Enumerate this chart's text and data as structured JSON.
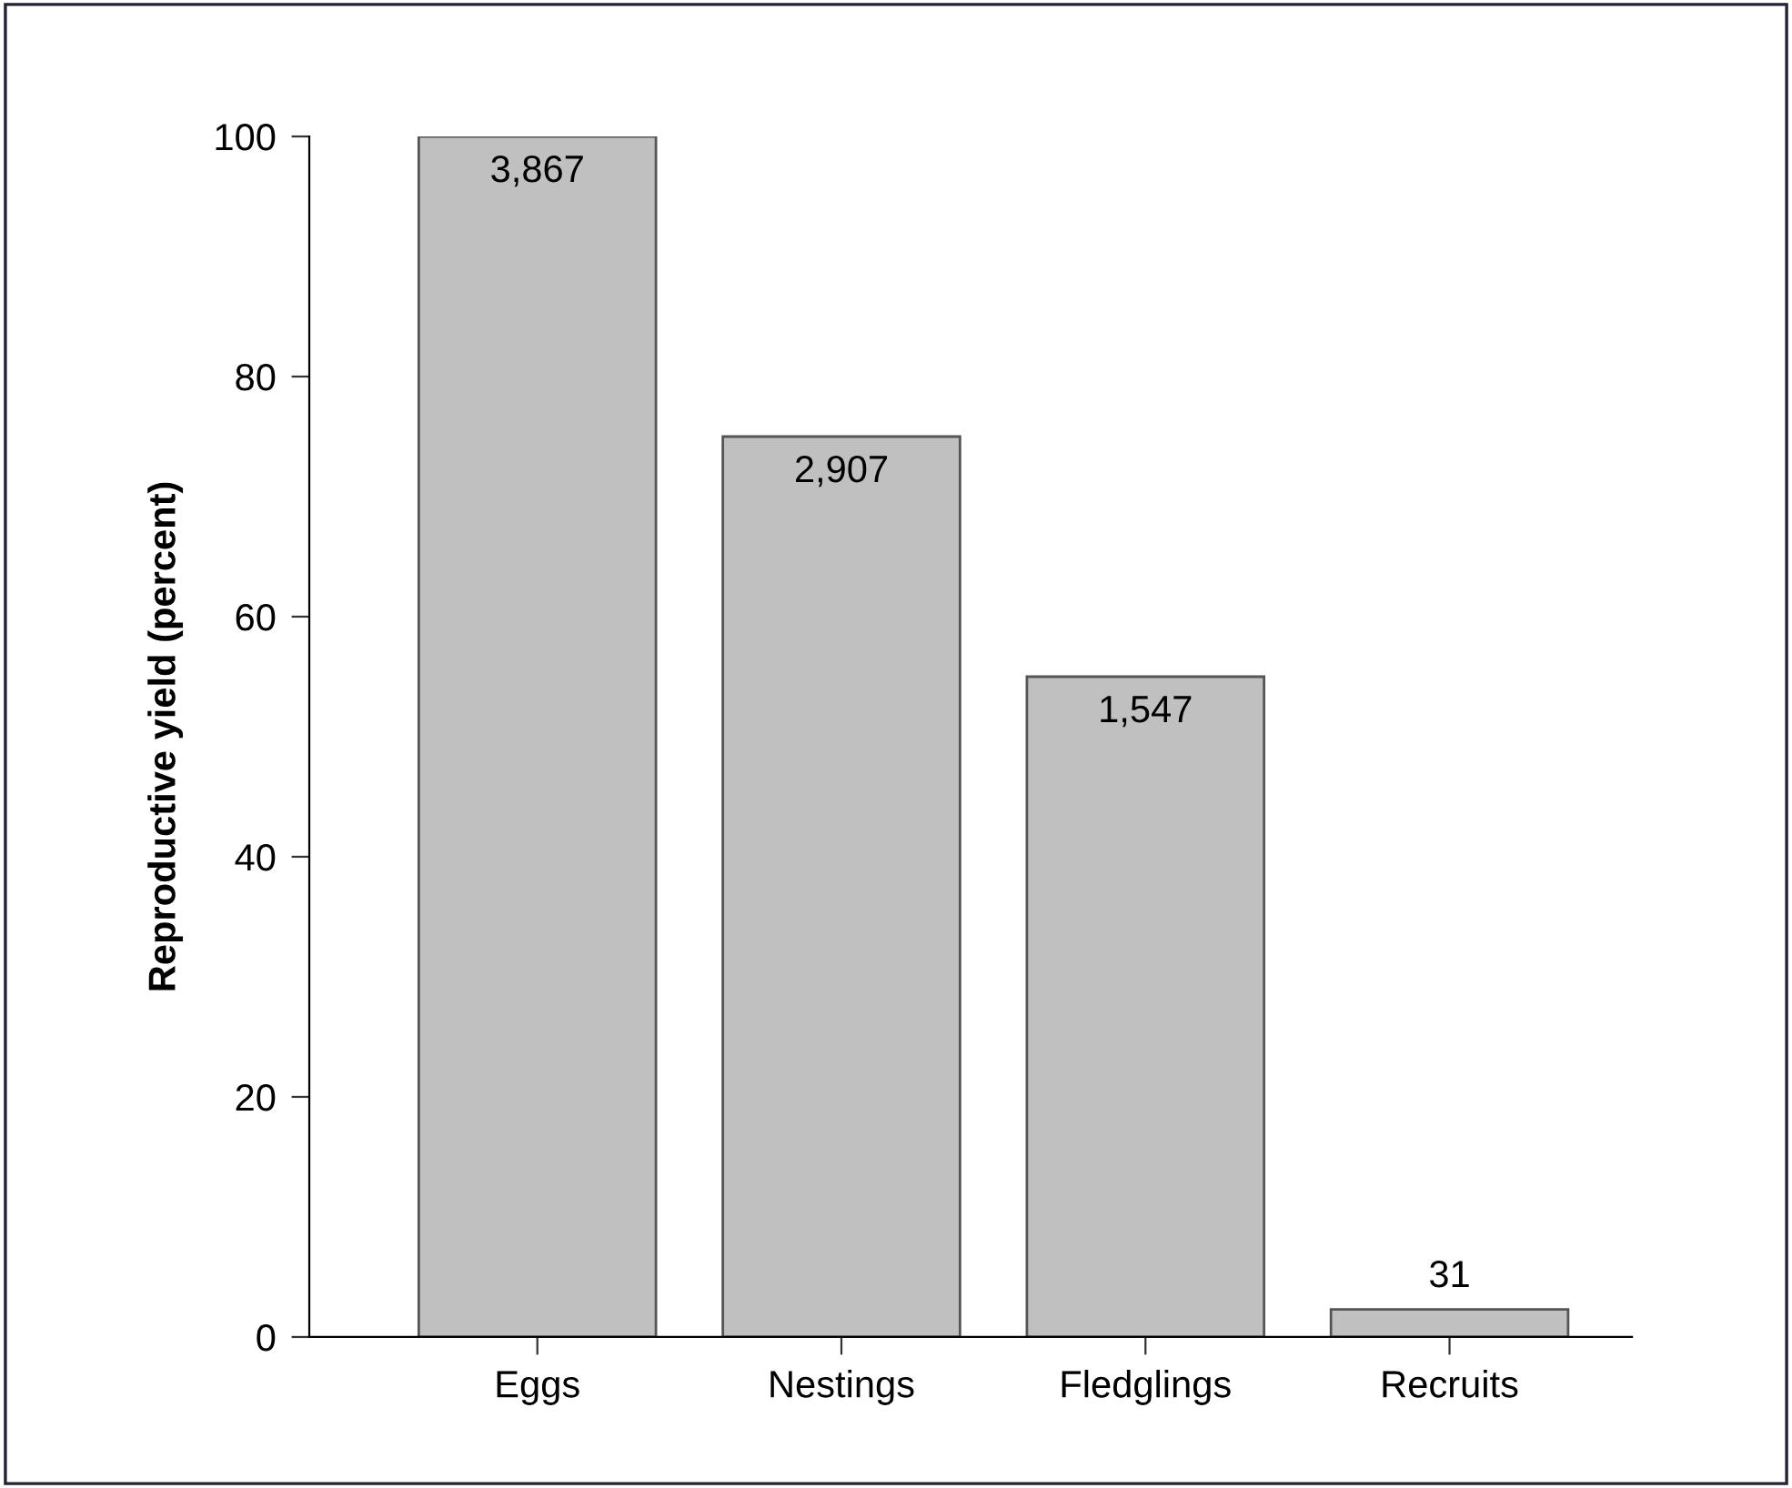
{
  "chart_data": {
    "type": "bar",
    "ylabel": "Reproductive yield (percent)",
    "categories": [
      "Eggs",
      "Nestings",
      "Fledglings",
      "Recruits"
    ],
    "values": [
      100,
      75,
      55,
      2.3
    ],
    "annotations": [
      {
        "text": "3,867",
        "x": "Eggs",
        "y": 100
      },
      {
        "text": "2,907",
        "x": "Nestings",
        "y": 75
      },
      {
        "text": "1,547",
        "x": "Fledglings",
        "y": 55
      },
      {
        "text": "31",
        "x": "Recruits",
        "y": 2.3
      }
    ],
    "color": "#c0c0c0",
    "ylim": [
      0,
      100
    ],
    "yticks": [
      0,
      20,
      40,
      60,
      80,
      100
    ],
    "grid": false
  }
}
